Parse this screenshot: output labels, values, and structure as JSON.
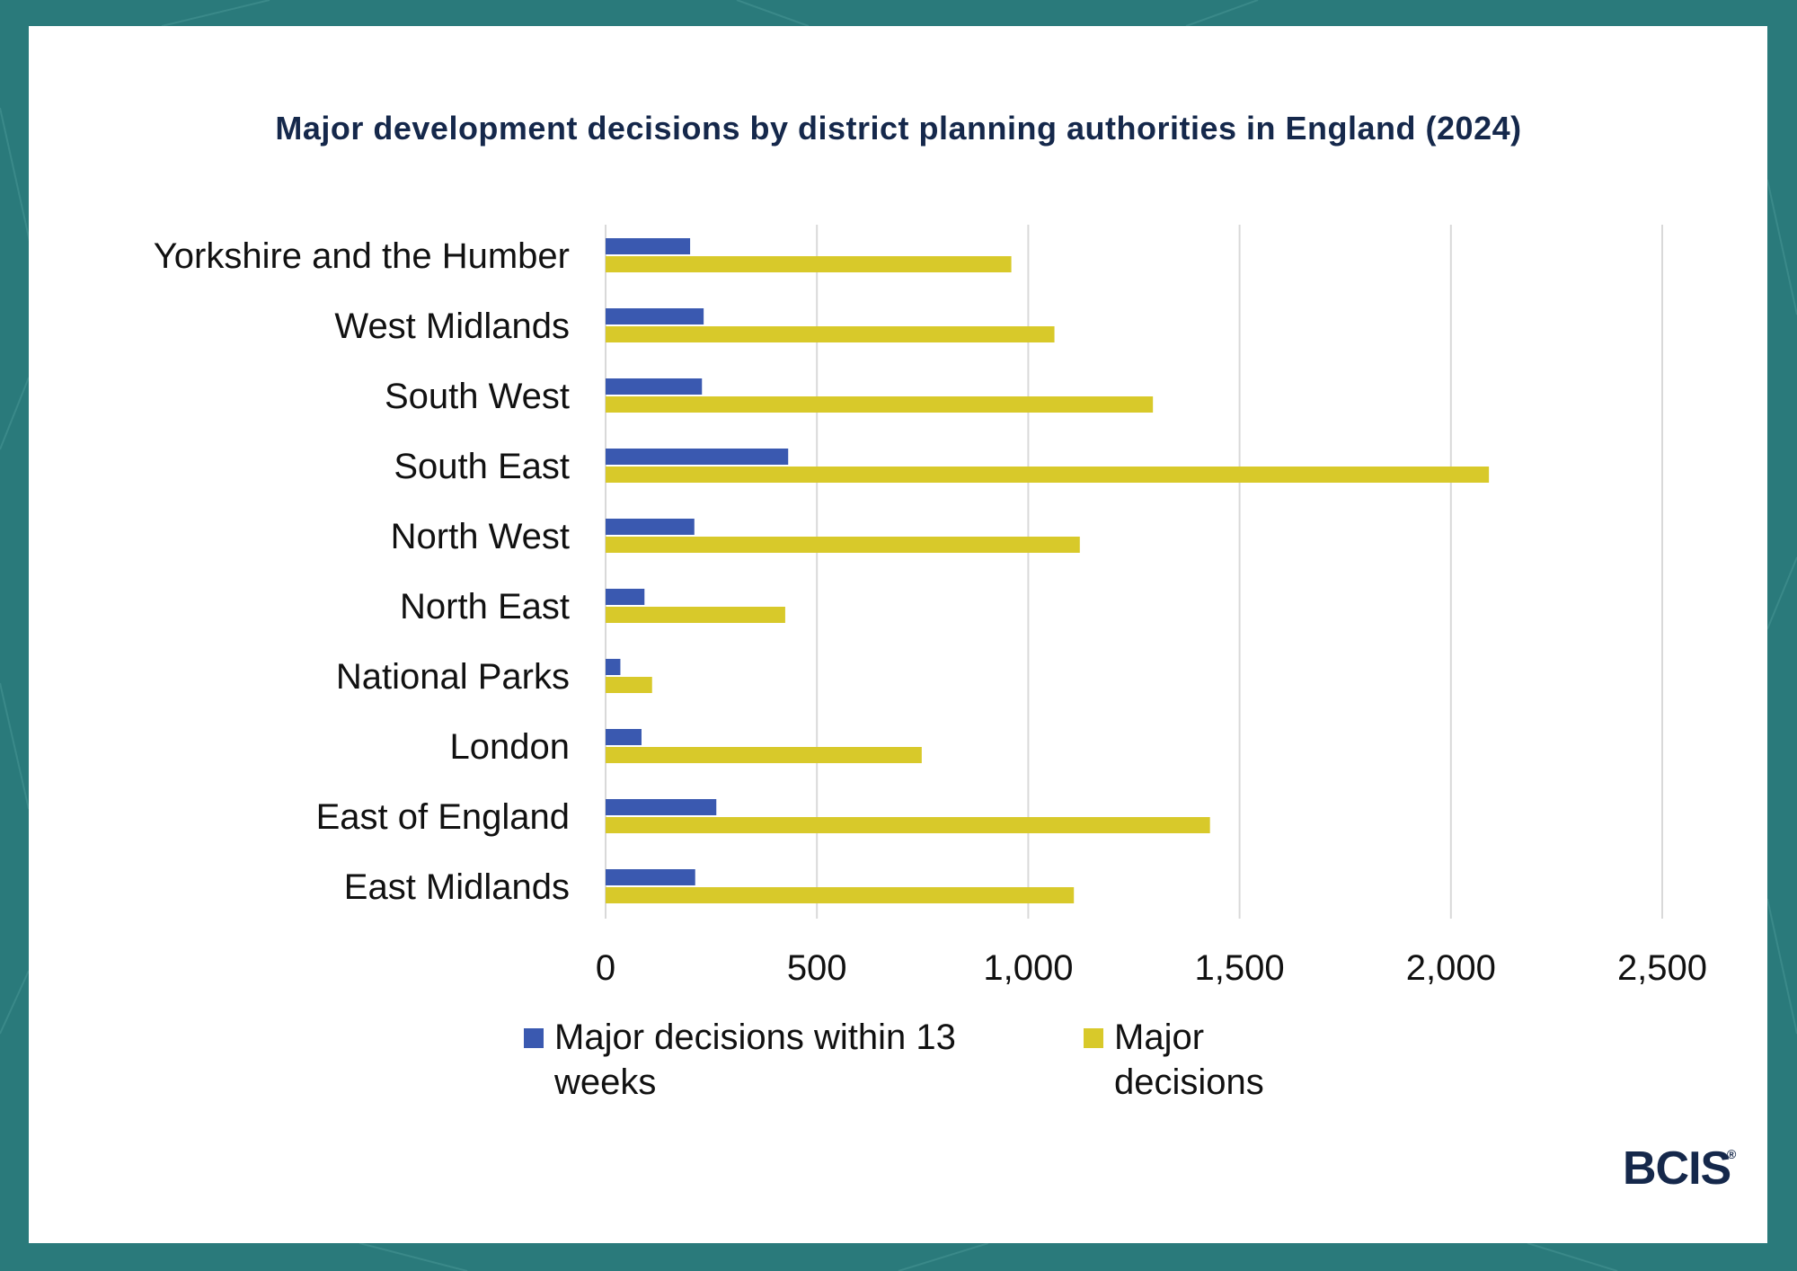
{
  "title": "Major development decisions by district planning authorities in England (2024)",
  "logo_text": "BCIS",
  "logo_mark": "®",
  "colors": {
    "background": "#2a7a7b",
    "title": "#15284b",
    "series_within_13_weeks": "#3a59b0",
    "series_major": "#d8c92a",
    "gridline": "#d9d9d9"
  },
  "legend": {
    "within_label_line1": "Major decisions within 13",
    "within_label_line2": "weeks",
    "major_label_line1": "Major",
    "major_label_line2": "decisions"
  },
  "chart_data": {
    "type": "bar",
    "orientation": "horizontal",
    "title": "Major development decisions by district planning authorities in England (2024)",
    "categories": [
      "Yorkshire and the Humber",
      "West Midlands",
      "South West",
      "South East",
      "North West",
      "North East",
      "National Parks",
      "London",
      "East of England",
      "East Midlands"
    ],
    "series": [
      {
        "name": "Major decisions within 13 weeks",
        "values": [
          200,
          232,
          228,
          432,
          210,
          92,
          35,
          85,
          262,
          212
        ]
      },
      {
        "name": "Major decisions",
        "values": [
          960,
          1062,
          1295,
          2090,
          1122,
          425,
          110,
          748,
          1430,
          1108
        ]
      }
    ],
    "xlim": [
      0,
      2500
    ],
    "x_ticks": [
      "0",
      "500",
      "1,000",
      "1,500",
      "2,000",
      "2,500"
    ],
    "x_tick_values": [
      0,
      500,
      1000,
      1500,
      2000,
      2500
    ],
    "grid": "vertical",
    "legend_position": "bottom"
  }
}
